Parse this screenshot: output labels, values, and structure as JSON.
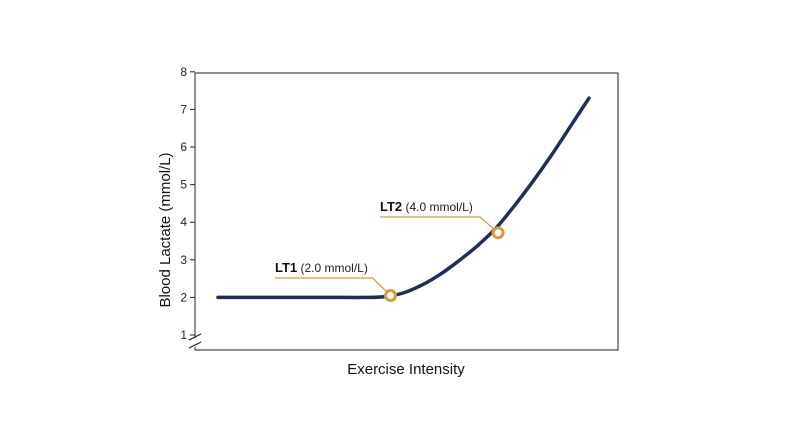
{
  "chart_data": {
    "type": "line",
    "title": "",
    "xlabel": "Exercise Intensity",
    "ylabel": "Blood Lactate (mmol/L)",
    "ylim": [
      1,
      8
    ],
    "yticks": [
      1,
      2,
      3,
      4,
      5,
      6,
      7,
      8
    ],
    "y_axis_break": true,
    "x_ticks_shown": false,
    "grid": false,
    "legend": "none",
    "series": [
      {
        "color": "#1f2f5c",
        "points": [
          {
            "x": 0,
            "y": 2.0
          },
          {
            "x": 10,
            "y": 2.0
          },
          {
            "x": 20,
            "y": 2.0
          },
          {
            "x": 30,
            "y": 2.0
          },
          {
            "x": 40,
            "y": 2.0
          },
          {
            "x": 45,
            "y": 2.02
          },
          {
            "x": 50,
            "y": 2.12
          },
          {
            "x": 55,
            "y": 2.33
          },
          {
            "x": 60,
            "y": 2.62
          },
          {
            "x": 65,
            "y": 2.98
          },
          {
            "x": 70,
            "y": 3.38
          },
          {
            "x": 75,
            "y": 3.85
          },
          {
            "x": 80,
            "y": 4.45
          },
          {
            "x": 85,
            "y": 5.1
          },
          {
            "x": 90,
            "y": 5.8
          },
          {
            "x": 95,
            "y": 6.55
          },
          {
            "x": 100,
            "y": 7.3
          }
        ]
      }
    ],
    "annotations": [
      {
        "name": "LT1",
        "value_text": "(2.0 mmol/L)",
        "x": 46.5,
        "y": 2.05
      },
      {
        "name": "LT2",
        "value_text": "(4.0 mmol/L)",
        "x": 75.5,
        "y": 3.72
      }
    ],
    "colors": {
      "line": "#1f2f5c",
      "marker": "#d99a3a",
      "leader": "#d99a3a",
      "axis": "#222222"
    }
  }
}
